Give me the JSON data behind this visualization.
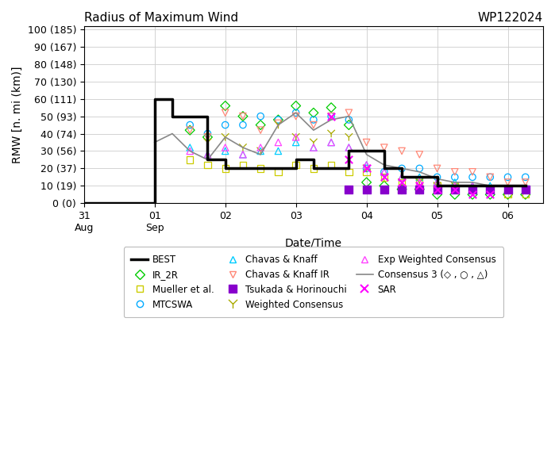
{
  "title_left": "Radius of Maximum Wind",
  "title_right": "WP122024",
  "xlabel": "Date/Time",
  "ylabel": "RMW [n. mi (km)]",
  "yticks": [
    0,
    10,
    20,
    30,
    40,
    50,
    60,
    70,
    80,
    90,
    100
  ],
  "ytick_labels": [
    "0 (0)",
    "10 (19)",
    "20 (37)",
    "30 (56)",
    "40 (74)",
    "50 (93)",
    "60 (111)",
    "70 (130)",
    "80 (148)",
    "90 (167)",
    "100 (185)"
  ],
  "ylim": [
    0,
    102
  ],
  "xlim_num": [
    0.0,
    6.5
  ],
  "xticks": [
    0.0,
    1.0,
    2.0,
    3.0,
    4.0,
    5.0,
    6.0
  ],
  "xtick_labels": [
    "31\nAug",
    "01\nSep",
    "02",
    "03",
    "04",
    "05",
    "06"
  ],
  "best_x": [
    0.0,
    1.0,
    1.25,
    1.5,
    1.75,
    2.0,
    2.25,
    2.5,
    2.75,
    3.0,
    3.25,
    3.5,
    3.75,
    4.0,
    4.25,
    4.5,
    4.75,
    5.0,
    5.25,
    5.5,
    5.75,
    6.0,
    6.25
  ],
  "best_y": [
    0,
    60,
    50,
    50,
    25,
    20,
    20,
    20,
    20,
    25,
    20,
    20,
    30,
    30,
    20,
    15,
    15,
    10,
    10,
    10,
    10,
    10,
    10
  ],
  "consensus3_x": [
    1.0,
    1.25,
    1.5,
    1.75,
    2.0,
    2.25,
    2.5,
    2.75,
    3.0,
    3.25,
    3.5,
    3.75,
    4.0,
    4.25,
    4.5,
    4.75,
    5.0,
    5.25,
    5.5,
    5.75,
    6.0,
    6.25
  ],
  "consensus3_y": [
    35,
    40,
    30,
    25,
    38,
    32,
    28,
    45,
    52,
    42,
    48,
    50,
    28,
    22,
    20,
    18,
    14,
    12,
    12,
    10,
    10,
    10
  ],
  "ir2r_x": [
    1.5,
    1.75,
    2.0,
    2.25,
    2.5,
    2.75,
    3.0,
    3.25,
    3.5,
    3.75,
    4.0,
    4.25,
    4.5,
    4.75,
    5.0,
    5.25,
    5.5,
    5.75,
    6.0,
    6.25
  ],
  "ir2r_y": [
    42,
    38,
    56,
    50,
    45,
    48,
    56,
    52,
    55,
    45,
    12,
    10,
    8,
    8,
    5,
    5,
    5,
    5,
    5,
    5
  ],
  "mueller_x": [
    1.5,
    1.75,
    2.0,
    2.25,
    2.5,
    2.75,
    3.0,
    3.25,
    3.5,
    3.75,
    4.0,
    4.25,
    4.5,
    4.75,
    5.0,
    5.25,
    5.5,
    5.75,
    6.0,
    6.25
  ],
  "mueller_y": [
    25,
    22,
    20,
    22,
    20,
    18,
    22,
    20,
    22,
    18,
    18,
    15,
    12,
    12,
    10,
    10,
    8,
    8,
    5,
    5
  ],
  "mtcswa_x": [
    1.5,
    1.75,
    2.0,
    2.25,
    2.5,
    2.75,
    3.0,
    3.25,
    3.5,
    3.75,
    4.0,
    4.25,
    4.5,
    4.75,
    5.0,
    5.25,
    5.5,
    5.75,
    6.0,
    6.25
  ],
  "mtcswa_y": [
    45,
    40,
    45,
    45,
    50,
    48,
    52,
    48,
    50,
    48,
    20,
    18,
    20,
    20,
    15,
    15,
    15,
    15,
    15,
    15
  ],
  "chavas_x": [
    1.5,
    1.75,
    2.0,
    2.25,
    2.5,
    2.75,
    3.0,
    3.25,
    3.5,
    3.75,
    4.0,
    4.25,
    4.5,
    4.75,
    5.0,
    5.25,
    5.5,
    5.75,
    6.0,
    6.25
  ],
  "chavas_y": [
    32,
    28,
    30,
    28,
    30,
    30,
    35,
    32,
    35,
    32,
    22,
    18,
    15,
    15,
    12,
    12,
    10,
    10,
    8,
    8
  ],
  "chavas_ir_x": [
    1.5,
    1.75,
    2.0,
    2.25,
    2.5,
    2.75,
    3.0,
    3.25,
    3.5,
    3.75,
    4.0,
    4.25,
    4.5,
    4.75,
    5.0,
    5.25,
    5.5,
    5.75,
    6.0,
    6.25
  ],
  "chavas_ir_y": [
    42,
    38,
    52,
    50,
    42,
    46,
    50,
    45,
    50,
    52,
    35,
    32,
    30,
    28,
    20,
    18,
    18,
    15,
    12,
    12
  ],
  "tsukada_x": [
    3.75,
    4.0,
    4.25,
    4.5,
    4.75,
    5.0,
    5.25,
    5.5,
    5.75,
    6.0,
    6.25
  ],
  "tsukada_y": [
    8,
    8,
    8,
    8,
    8,
    8,
    8,
    8,
    8,
    8,
    8
  ],
  "weighted_x": [
    1.75,
    2.0,
    2.25,
    2.5,
    2.75,
    3.0,
    3.25,
    3.5,
    3.75,
    4.0,
    4.25,
    4.5,
    4.75,
    5.0,
    5.25,
    5.5,
    5.75,
    6.0,
    6.25
  ],
  "weighted_y": [
    35,
    38,
    32,
    30,
    45,
    38,
    35,
    40,
    38,
    20,
    15,
    12,
    12,
    10,
    10,
    8,
    8,
    8,
    8
  ],
  "exp_weighted_x": [
    1.5,
    1.75,
    2.0,
    2.25,
    2.5,
    2.75,
    3.0,
    3.25,
    3.5,
    3.75,
    4.0,
    4.25,
    4.5,
    4.75,
    5.0,
    5.25,
    5.5,
    5.75,
    6.0,
    6.25
  ],
  "exp_weighted_y": [
    30,
    28,
    32,
    28,
    32,
    35,
    38,
    32,
    35,
    32,
    22,
    18,
    15,
    12,
    12,
    10,
    10,
    8,
    8,
    8
  ],
  "sar_x": [
    3.5,
    3.75,
    4.0,
    4.25,
    4.5,
    4.75,
    5.0,
    5.25,
    5.5,
    5.75
  ],
  "sar_y": [
    50,
    25,
    20,
    15,
    12,
    10,
    8,
    8,
    5,
    5
  ],
  "color_best": "#000000",
  "color_ir2r": "#00cc00",
  "color_mueller": "#cccc00",
  "color_mtcswa": "#00aaff",
  "color_chavas": "#00ccff",
  "color_chavas_ir": "#ff8877",
  "color_tsukada": "#8800cc",
  "color_weighted": "#aaaa00",
  "color_exp_weighted": "#ff44ff",
  "color_consensus3": "#888888",
  "color_sar": "#ff00ff"
}
